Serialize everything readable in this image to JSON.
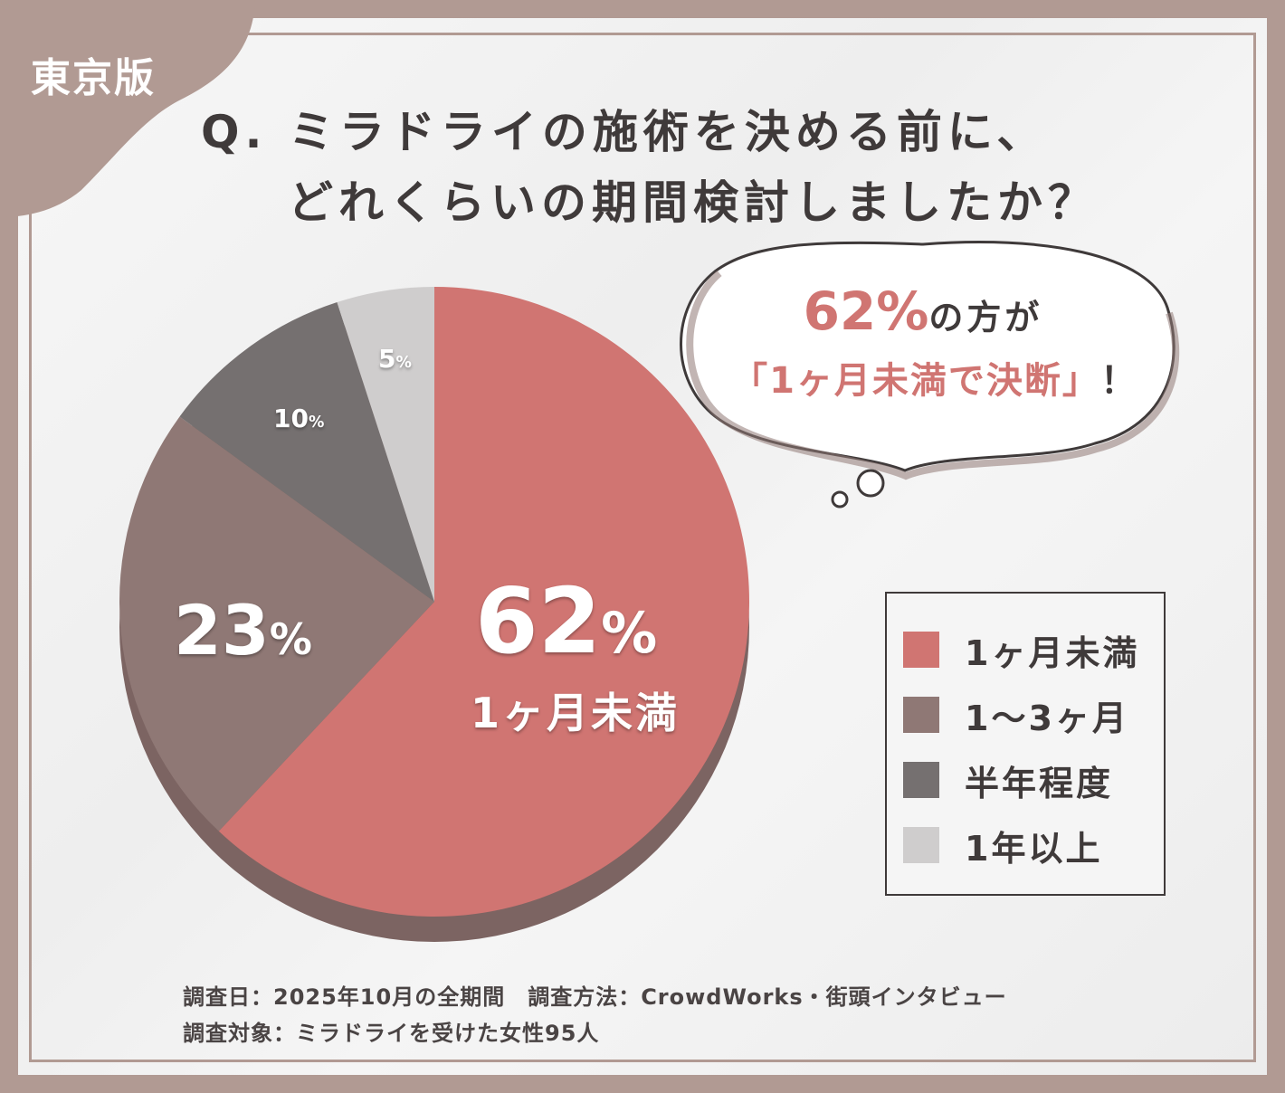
{
  "badge": {
    "text": "東京版"
  },
  "title": {
    "line1": "Q. ミラドライの施術を決める前に、",
    "line2": "どれくらいの期間検討しましたか？"
  },
  "callout": {
    "percent": "62%",
    "line1_rest": "の方が",
    "line2": "「1ヶ月未満で決断」",
    "line2_excl": "！"
  },
  "pie_labels": {
    "big_value": "62",
    "big_cat": "1ヶ月未満",
    "v23": "23",
    "v10": "10",
    "v5": "5",
    "pct_sign": "%"
  },
  "legend": [
    {
      "label": "1ヶ月未満",
      "color": "#d07572"
    },
    {
      "label": "1～3ヶ月",
      "color": "#8f7875"
    },
    {
      "label": "半年程度",
      "color": "#757070"
    },
    {
      "label": "1年以上",
      "color": "#cfcdcd"
    }
  ],
  "footnote": {
    "line1": "調査日：2025年10月の全期間　調査方法：CrowdWorks・街頭インタビュー",
    "line2": "調査対象：ミラドライを受けた女性95人"
  },
  "chart_data": {
    "type": "pie",
    "categories": [
      "1ヶ月未満",
      "1～3ヶ月",
      "半年程度",
      "1年以上"
    ],
    "values": [
      62,
      23,
      10,
      5
    ],
    "colors": [
      "#d07572",
      "#8f7875",
      "#757070",
      "#cfcdcd"
    ],
    "title": "Q. ミラドライの施術を決める前に、どれくらいの期間検討しましたか？",
    "legend_position": "right"
  }
}
